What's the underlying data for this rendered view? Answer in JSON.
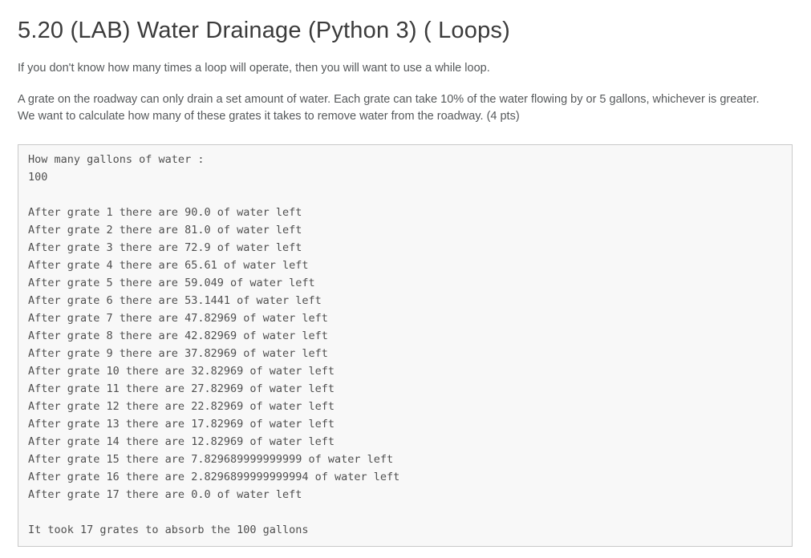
{
  "page": {
    "title": "5.20 (LAB) Water Drainage (Python 3) ( Loops)",
    "intro": "If you don't know how many times a loop will operate, then you will want to use a while loop.",
    "description": "A grate on the roadway can only drain a set amount of water. Each grate can take 10% of the water flowing by or 5 gallons, whichever is greater. We want to calculate how many of these grates it takes to remove water from the roadway. (4 pts)"
  },
  "console": {
    "lines": [
      "How many gallons of water :",
      "100",
      "",
      "After grate 1 there are 90.0 of water left",
      "After grate 2 there are 81.0 of water left",
      "After grate 3 there are 72.9 of water left",
      "After grate 4 there are 65.61 of water left",
      "After grate 5 there are 59.049 of water left",
      "After grate 6 there are 53.1441 of water left",
      "After grate 7 there are 47.82969 of water left",
      "After grate 8 there are 42.82969 of water left",
      "After grate 9 there are 37.82969 of water left",
      "After grate 10 there are 32.82969 of water left",
      "After grate 11 there are 27.82969 of water left",
      "After grate 12 there are 22.82969 of water left",
      "After grate 13 there are 17.82969 of water left",
      "After grate 14 there are 12.82969 of water left",
      "After grate 15 there are 7.829689999999999 of water left",
      "After grate 16 there are 2.8296899999999994 of water left",
      "After grate 17 there are 0.0 of water left",
      "",
      "It took 17 grates to absorb the 100 gallons"
    ]
  }
}
